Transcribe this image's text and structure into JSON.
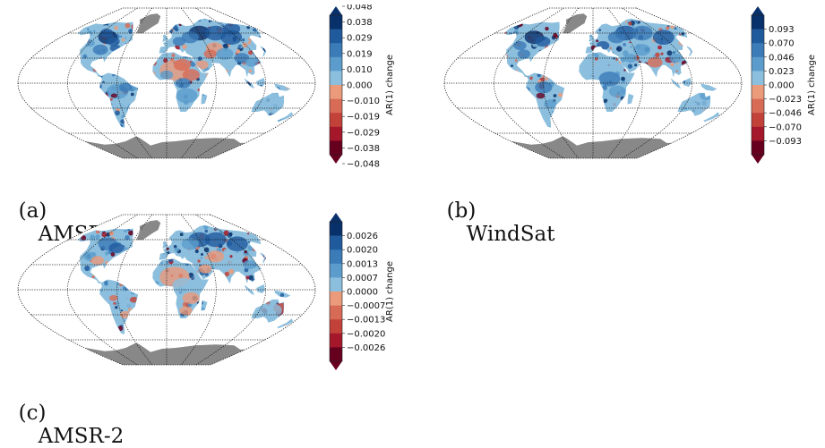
{
  "figure": {
    "panels": [
      {
        "id": "a",
        "caption_letter": "(a)",
        "caption_name": "AMSR-E",
        "colorbar_label": "AR(1) change",
        "ticks": [
          "0.048",
          "0.038",
          "0.029",
          "0.019",
          "0.010",
          "0.000",
          "−0.010",
          "−0.019",
          "−0.029",
          "−0.038",
          "−0.048"
        ]
      },
      {
        "id": "b",
        "caption_letter": "(b)",
        "caption_name": "WindSat",
        "colorbar_label": "AR(1) change",
        "ticks": [
          "0.093",
          "0.070",
          "0.046",
          "0.023",
          "0.000",
          "−0.023",
          "−0.046",
          "−0.070",
          "−0.093"
        ]
      },
      {
        "id": "c",
        "caption_letter": "(c)",
        "caption_name": "AMSR-2",
        "colorbar_label": "AR(1) change",
        "ticks": [
          "0.0026",
          "0.0020",
          "0.0013",
          "0.0007",
          "0.0000",
          "−0.0007",
          "−0.0013",
          "−0.0020",
          "−0.0026"
        ]
      }
    ]
  },
  "chart_data": [
    {
      "type": "heatmap",
      "title": "AMSR-E",
      "map_projection": "Robinson",
      "colorbar": {
        "label": "AR(1) change",
        "orientation": "vertical",
        "extend": "both",
        "ticks": [
          0.048,
          0.038,
          0.029,
          0.019,
          0.01,
          0.0,
          -0.01,
          -0.019,
          -0.029,
          -0.038,
          -0.048
        ],
        "range": [
          -0.048,
          0.048
        ],
        "colormap": "RdBu",
        "colors_high_to_low": [
          "#08306b",
          "#1f5a9d",
          "#3b7bb8",
          "#5b9ccc",
          "#8cbfde",
          "#eb9a7a",
          "#d86b56",
          "#c2423a",
          "#a5172a",
          "#67001f"
        ]
      },
      "land_mask_color": "#888888",
      "grid": true
    },
    {
      "type": "heatmap",
      "title": "WindSat",
      "map_projection": "Robinson",
      "colorbar": {
        "label": "AR(1) change",
        "orientation": "vertical",
        "extend": "both",
        "ticks": [
          0.093,
          0.07,
          0.046,
          0.023,
          0.0,
          -0.023,
          -0.046,
          -0.07,
          -0.093
        ],
        "range": [
          -0.093,
          0.093
        ],
        "colormap": "RdBu",
        "colors_high_to_low": [
          "#08306b",
          "#1f5a9d",
          "#3b7bb8",
          "#5b9ccc",
          "#8cbfde",
          "#eb9a7a",
          "#d86b56",
          "#c2423a",
          "#a5172a",
          "#67001f"
        ]
      },
      "land_mask_color": "#888888",
      "grid": true
    },
    {
      "type": "heatmap",
      "title": "AMSR-2",
      "map_projection": "Robinson",
      "colorbar": {
        "label": "AR(1) change",
        "orientation": "vertical",
        "extend": "both",
        "ticks": [
          0.0026,
          0.002,
          0.0013,
          0.0007,
          0.0,
          -0.0007,
          -0.0013,
          -0.002,
          -0.0026
        ],
        "range": [
          -0.0026,
          0.0026
        ],
        "colormap": "RdBu",
        "colors_high_to_low": [
          "#08306b",
          "#1f5a9d",
          "#3b7bb8",
          "#5b9ccc",
          "#8cbfde",
          "#eb9a7a",
          "#d86b56",
          "#c2423a",
          "#a5172a",
          "#67001f"
        ]
      },
      "land_mask_color": "#888888",
      "grid": true
    }
  ]
}
